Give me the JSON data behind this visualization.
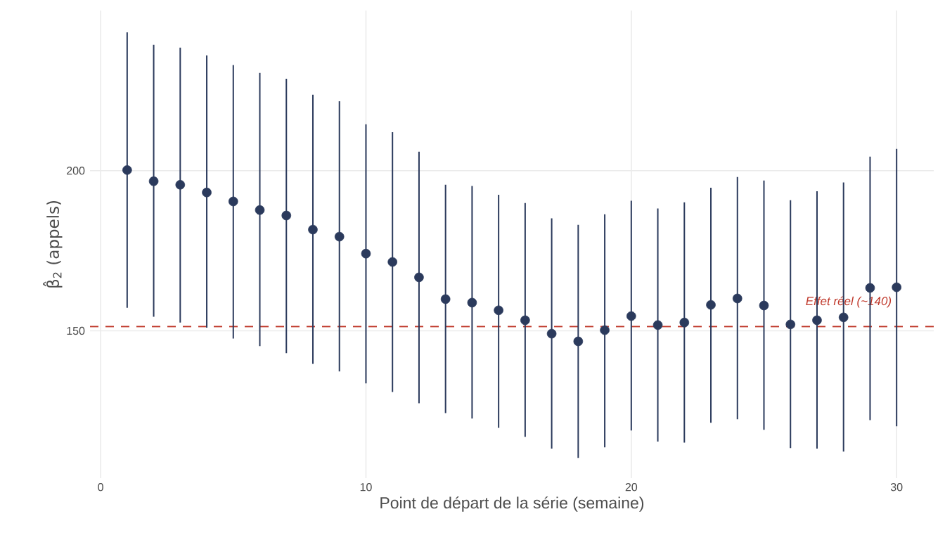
{
  "chart_data": {
    "type": "scatter",
    "xlabel": "Point de départ de la série (semaine)",
    "ylabel": "β̂$_{2}$ (appels)",
    "x": [
      1,
      2,
      3,
      4,
      5,
      6,
      7,
      8,
      9,
      10,
      11,
      12,
      13,
      14,
      15,
      16,
      17,
      18,
      19,
      20,
      21,
      22,
      23,
      24,
      25,
      26,
      27,
      28,
      29,
      30
    ],
    "series": [
      {
        "color": "#2b3a5c",
        "values": [
          200.2,
          196.7,
          195.6,
          193.2,
          190.4,
          187.7,
          186,
          181.6,
          179.4,
          174.1,
          171.5,
          166.7,
          159.9,
          158.8,
          156.4,
          153.3,
          149.1,
          146.7,
          150.2,
          154.6,
          151.8,
          152.6,
          158.1,
          160.1,
          157.9,
          152,
          153.3,
          154.2,
          163.4,
          163.6
        ],
        "errors": [
          [
            157.2,
            243.2
          ],
          [
            154.4,
            239.3
          ],
          [
            152.6,
            238.4
          ],
          [
            151,
            236
          ],
          [
            147.6,
            233
          ],
          [
            145.2,
            230.5
          ],
          [
            143,
            228.7
          ],
          [
            139.7,
            223.7
          ],
          [
            137.3,
            221.7
          ],
          [
            133.6,
            214.5
          ],
          [
            130.9,
            212
          ],
          [
            127.4,
            205.9
          ],
          [
            124.3,
            195.6
          ],
          [
            122.6,
            195.2
          ],
          [
            119.7,
            192.5
          ],
          [
            116.9,
            189.9
          ],
          [
            113.2,
            185.1
          ],
          [
            110.3,
            183.1
          ],
          [
            113.6,
            186.4
          ],
          [
            118.9,
            190.6
          ],
          [
            115.4,
            188.2
          ],
          [
            115.1,
            190.1
          ],
          [
            121.3,
            194.7
          ],
          [
            122.4,
            198
          ],
          [
            119.1,
            196.9
          ],
          [
            113.4,
            190.8
          ],
          [
            113.2,
            193.6
          ],
          [
            112.3,
            196.3
          ],
          [
            122.1,
            204.4
          ],
          [
            120.2,
            206.8
          ]
        ]
      }
    ],
    "ref_lines": [
      {
        "axis": "y",
        "value": 151.3,
        "label": "Effet réel (~140)",
        "color": "#c0392b",
        "line_style": "dashed"
      }
    ],
    "xlim": [
      -0.4,
      31.4
    ],
    "ylim": [
      104,
      250
    ],
    "xticks": [
      0,
      10,
      20,
      30
    ],
    "yticks": [
      150,
      200
    ],
    "grid": true,
    "marker": "circle"
  }
}
